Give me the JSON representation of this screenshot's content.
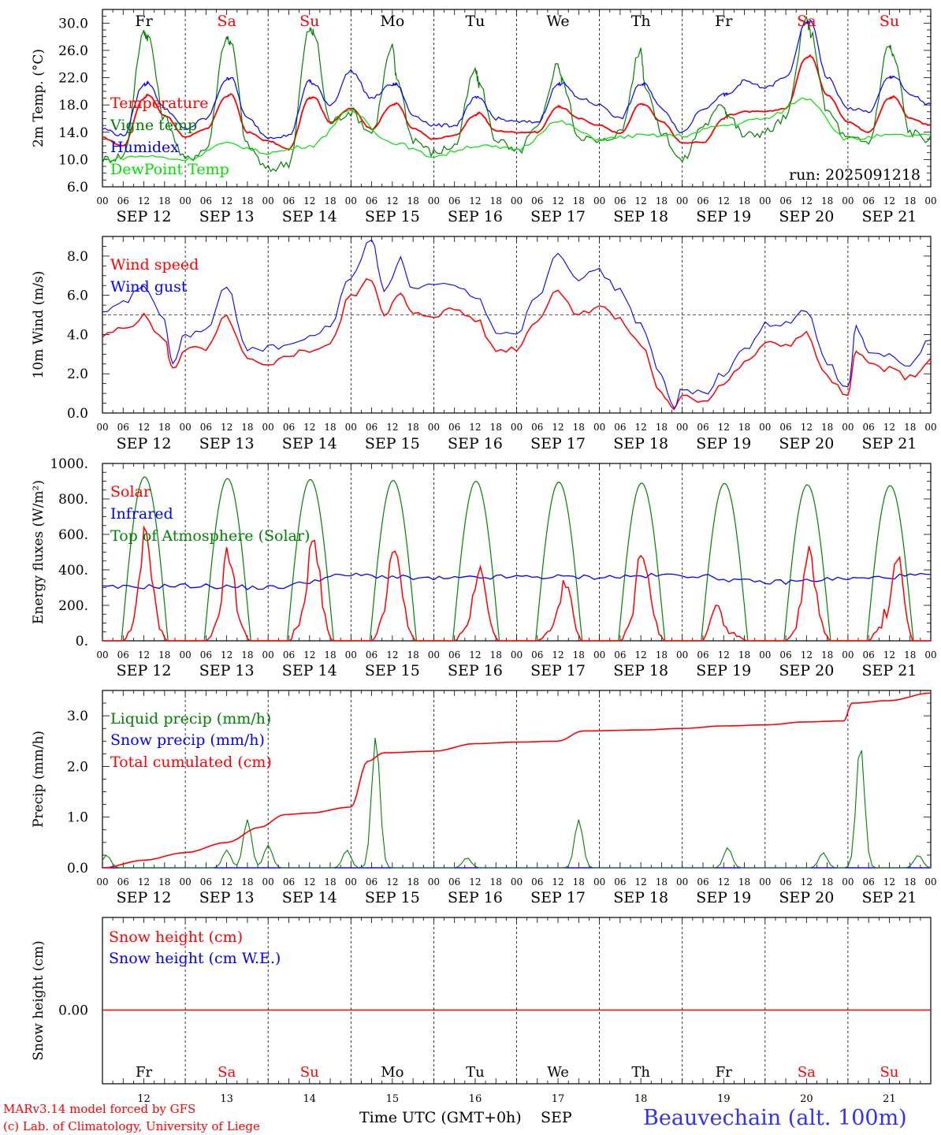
{
  "colors": {
    "red": "#ff0000",
    "green": "#008000",
    "blue": "#0000ff",
    "lightgreen": "#00e000",
    "gray": "#555555"
  },
  "footer": {
    "model": "MARv3.14 model forced by GFS",
    "lab": "(c) Lab. of Climatology, University of Liege",
    "time_axis": "Time UTC (GMT+0h)",
    "month": "SEP",
    "station": "Beauvechain (alt. 100m)"
  },
  "run_label": "run: 2025091218",
  "date_labels": [
    "SEP 12",
    "SEP 13",
    "SEP 14",
    "SEP 15",
    "SEP 16",
    "SEP 17",
    "SEP 18",
    "SEP 19",
    "SEP 20",
    "SEP 21"
  ],
  "day_numbers": [
    "12",
    "13",
    "14",
    "15",
    "16",
    "17",
    "18",
    "19",
    "20",
    "21"
  ],
  "weekdays": [
    "Fr",
    "Sa",
    "Su",
    "Mo",
    "Tu",
    "We",
    "Th",
    "Fr",
    "Sa",
    "Su"
  ],
  "weekend": [
    false,
    true,
    true,
    false,
    false,
    false,
    false,
    false,
    true,
    true
  ],
  "hour_ticks": [
    "00",
    "06",
    "12",
    "18"
  ],
  "chart_data": [
    {
      "type": "line",
      "ylabel": "2m Temp. (°C)",
      "ylim": [
        6,
        32
      ],
      "yticks": [
        "6.0",
        "10.0",
        "14.0",
        "18.0",
        "22.0",
        "26.0",
        "30.0"
      ],
      "x_unit": "day offset from SEP 12 00 UTC",
      "series": [
        {
          "name": "Temperature",
          "color": "red",
          "x": [
            0,
            0.25,
            0.5,
            0.55,
            0.75,
            1,
            1.25,
            1.5,
            1.55,
            1.75,
            2,
            2.25,
            2.5,
            2.55,
            2.75,
            3,
            3.25,
            3.5,
            3.55,
            3.75,
            4,
            4.25,
            4.5,
            4.55,
            4.75,
            5,
            5.25,
            5.5,
            5.55,
            5.75,
            6,
            6.25,
            6.5,
            6.55,
            6.75,
            7,
            7.25,
            7.5,
            7.55,
            7.75,
            8,
            8.25,
            8.5,
            8.55,
            8.75,
            9,
            9.25,
            9.5,
            9.55,
            9.75,
            10
          ],
          "y": [
            13.2,
            12.0,
            19.0,
            19.5,
            16.5,
            13.3,
            14.5,
            19.2,
            19.6,
            14.0,
            12.7,
            11.5,
            19.0,
            19.2,
            15.5,
            17.5,
            14.5,
            18.0,
            18.2,
            14.5,
            13.0,
            13.5,
            16.5,
            16.8,
            14.2,
            14.0,
            14.0,
            17.8,
            17.6,
            16.0,
            15.0,
            13.8,
            18.2,
            18.0,
            15.5,
            12.5,
            12.5,
            16.0,
            16.5,
            17.0,
            17.0,
            17.5,
            25.0,
            25.2,
            19.5,
            15.5,
            14.0,
            19.0,
            19.2,
            16.0,
            15.0
          ]
        },
        {
          "name": "Vigne temp",
          "color": "green",
          "x": [
            0,
            0.25,
            0.5,
            0.55,
            0.75,
            1,
            1.25,
            1.5,
            1.55,
            1.75,
            2,
            2.25,
            2.5,
            2.55,
            2.75,
            3,
            3.25,
            3.5,
            3.55,
            3.75,
            4,
            4.25,
            4.5,
            4.55,
            4.75,
            5,
            5.25,
            5.5,
            5.55,
            5.75,
            6,
            6.25,
            6.5,
            6.55,
            6.75,
            7,
            7.25,
            7.5,
            7.55,
            7.75,
            8,
            8.25,
            8.5,
            8.55,
            8.75,
            9,
            9.25,
            9.5,
            9.55,
            9.75,
            10
          ],
          "y": [
            10.0,
            10.5,
            28.5,
            28.0,
            16.0,
            10.0,
            11.5,
            28.0,
            27.0,
            12.0,
            8.5,
            9.5,
            29.0,
            28.5,
            15.5,
            17.0,
            14.0,
            26.5,
            22.0,
            13.0,
            11.0,
            12.0,
            23.0,
            21.0,
            13.0,
            11.0,
            14.5,
            24.0,
            21.5,
            13.5,
            12.5,
            14.0,
            26.0,
            21.0,
            14.0,
            9.8,
            15.0,
            18.0,
            16.5,
            13.5,
            14.0,
            16.0,
            30.5,
            28.5,
            17.0,
            13.0,
            12.5,
            26.8,
            25.0,
            14.0,
            13.0
          ]
        },
        {
          "name": "Humidex",
          "color": "blue",
          "x": [
            0,
            0.25,
            0.5,
            0.55,
            0.75,
            1,
            1.25,
            1.5,
            1.55,
            1.75,
            2,
            2.25,
            2.5,
            2.55,
            2.75,
            3,
            3.25,
            3.5,
            3.55,
            3.75,
            4,
            4.25,
            4.5,
            4.55,
            4.75,
            5,
            5.25,
            5.5,
            5.55,
            5.75,
            6,
            6.25,
            6.5,
            6.55,
            6.75,
            7,
            7.25,
            7.5,
            7.55,
            7.75,
            8,
            8.25,
            8.5,
            8.55,
            8.75,
            9,
            9.25,
            9.5,
            9.55,
            9.75,
            10
          ],
          "y": [
            14.5,
            13.5,
            21.0,
            21.2,
            17.5,
            14.5,
            16.0,
            21.8,
            22.0,
            16.0,
            13.3,
            13.5,
            21.5,
            21.0,
            18.0,
            23.0,
            19.0,
            21.0,
            21.0,
            16.5,
            15.0,
            15.0,
            19.0,
            19.0,
            16.0,
            15.5,
            15.5,
            21.0,
            21.2,
            19.0,
            18.0,
            16.0,
            21.0,
            21.0,
            17.5,
            14.0,
            17.5,
            19.5,
            19.5,
            21.5,
            20.5,
            22.0,
            30.0,
            30.2,
            22.0,
            17.5,
            17.0,
            22.0,
            22.2,
            19.5,
            18.0
          ]
        },
        {
          "name": "DewPoint Temp",
          "color": "lightgreen",
          "x": [
            0,
            0.5,
            1,
            1.5,
            2,
            2.5,
            3,
            3.5,
            4,
            4.5,
            5,
            5.5,
            6,
            6.5,
            7,
            7.5,
            8,
            8.5,
            9,
            9.5,
            10
          ],
          "y": [
            10.0,
            10.5,
            10.0,
            12.3,
            11.0,
            12.0,
            17.0,
            12.5,
            10.5,
            12.0,
            11.5,
            15.5,
            13.0,
            13.5,
            13.5,
            15.0,
            16.0,
            19.0,
            13.0,
            13.5,
            13.5
          ]
        }
      ]
    },
    {
      "type": "line",
      "ylabel": "10m Wind (m/s)",
      "ylim": [
        0,
        9
      ],
      "yticks": [
        "0.0",
        "2.0",
        "4.0",
        "6.0",
        "8.0"
      ],
      "reference_line": 5,
      "x_unit": "day offset from SEP 12 00 UTC",
      "series": [
        {
          "name": "Wind speed",
          "color": "red",
          "x": [
            0,
            0.25,
            0.5,
            0.75,
            0.85,
            1,
            1.25,
            1.5,
            1.75,
            2,
            2.25,
            2.5,
            2.75,
            3,
            3.25,
            3.4,
            3.6,
            3.75,
            4,
            4.25,
            4.5,
            4.75,
            5,
            5.25,
            5.5,
            5.75,
            6,
            6.25,
            6.5,
            6.75,
            6.9,
            7,
            7.25,
            7.5,
            7.75,
            8,
            8.25,
            8.5,
            8.75,
            9,
            9.1,
            9.25,
            9.5,
            9.75,
            10
          ],
          "y": [
            3.9,
            4.3,
            4.9,
            3.7,
            2.2,
            3.3,
            3.2,
            4.9,
            2.7,
            2.3,
            3.0,
            3.2,
            3.5,
            6.0,
            6.8,
            5.1,
            6.0,
            5.0,
            5.0,
            5.3,
            4.8,
            3.2,
            3.3,
            4.8,
            6.3,
            5.0,
            5.5,
            4.7,
            3.5,
            1.0,
            0.1,
            1.0,
            0.6,
            1.5,
            2.5,
            3.5,
            3.5,
            4.0,
            1.8,
            0.8,
            3.3,
            2.5,
            2.2,
            1.8,
            2.7
          ]
        },
        {
          "name": "Wind gust",
          "color": "blue",
          "x": [
            0,
            0.25,
            0.5,
            0.75,
            0.85,
            1,
            1.25,
            1.5,
            1.75,
            2,
            2.25,
            2.5,
            2.75,
            3,
            3.25,
            3.4,
            3.6,
            3.75,
            4,
            4.25,
            4.5,
            4.75,
            5,
            5.25,
            5.5,
            5.75,
            6,
            6.25,
            6.5,
            6.75,
            6.9,
            7,
            7.25,
            7.5,
            7.75,
            8,
            8.25,
            8.5,
            8.75,
            9,
            9.1,
            9.25,
            9.5,
            9.75,
            10
          ],
          "y": [
            5.0,
            5.6,
            6.5,
            4.6,
            2.5,
            4.0,
            4.2,
            6.4,
            3.3,
            3.3,
            3.5,
            3.8,
            4.5,
            7.0,
            8.8,
            6.3,
            7.8,
            6.3,
            6.5,
            6.4,
            6.0,
            4.2,
            4.1,
            6.0,
            8.2,
            6.9,
            7.2,
            6.2,
            4.5,
            1.8,
            0.2,
            1.3,
            1.0,
            2.0,
            3.2,
            4.5,
            4.5,
            5.2,
            2.5,
            1.2,
            4.4,
            3.0,
            3.0,
            2.5,
            3.7
          ]
        }
      ]
    },
    {
      "type": "line",
      "ylabel": "Energy fluxes (W/m²)",
      "ylim": [
        0,
        1000
      ],
      "yticks": [
        "0.",
        "200.",
        "400.",
        "600.",
        "800.",
        "1000."
      ],
      "x_unit": "day offset from SEP 12 00 UTC",
      "series": [
        {
          "name": "Solar",
          "color": "red",
          "peaks": [
            [
              0,
              0.52,
              680
            ],
            [
              1,
              0.52,
              550
            ],
            [
              2,
              0.55,
              670
            ],
            [
              3,
              0.52,
              640
            ],
            [
              4,
              0.55,
              450
            ],
            [
              5,
              0.6,
              390
            ],
            [
              6,
              0.52,
              590
            ],
            [
              7,
              0.4,
              240
            ],
            [
              8,
              0.53,
              600
            ],
            [
              9,
              0.6,
              580
            ]
          ]
        },
        {
          "name": "Infrared",
          "color": "blue",
          "x": [
            0,
            1,
            2,
            3,
            4,
            5,
            6,
            7,
            8,
            9,
            10
          ],
          "y": [
            300,
            310,
            300,
            370,
            350,
            360,
            360,
            370,
            330,
            350,
            370
          ]
        },
        {
          "name": "Top of Atmosphere (Solar)",
          "color": "green",
          "peak_values": [
            925,
            915,
            910,
            905,
            900,
            895,
            890,
            888,
            880,
            875
          ]
        }
      ]
    },
    {
      "type": "line",
      "ylabel": "Precip (mm/h)",
      "ylim": [
        0,
        3.5
      ],
      "yticks": [
        "0.0",
        "1.0",
        "2.0",
        "3.0"
      ],
      "x_unit": "day offset from SEP 12 00 UTC",
      "series": [
        {
          "name": "Liquid precip (mm/h)",
          "color": "green",
          "spikes": [
            [
              0.05,
              0.25
            ],
            [
              1.5,
              0.35
            ],
            [
              1.75,
              0.95
            ],
            [
              2.0,
              0.45
            ],
            [
              2.95,
              0.35
            ],
            [
              3.3,
              2.6
            ],
            [
              4.4,
              0.2
            ],
            [
              5.75,
              0.95
            ],
            [
              7.55,
              0.4
            ],
            [
              8.7,
              0.3
            ],
            [
              9.15,
              2.45
            ],
            [
              9.85,
              0.25
            ]
          ]
        },
        {
          "name": "Snow precip (mm/h)",
          "color": "blue",
          "x": [
            0,
            10
          ],
          "y": [
            0,
            0
          ]
        },
        {
          "name": "Total cumulated (cm)",
          "color": "red",
          "x": [
            0,
            0.5,
            1,
            1.5,
            1.9,
            2.2,
            2.5,
            3,
            3.2,
            3.4,
            4,
            4.5,
            5,
            5.5,
            5.8,
            6.5,
            7,
            7.5,
            8,
            8.5,
            8.95,
            9.05,
            9.5,
            10
          ],
          "y": [
            0.0,
            0.15,
            0.3,
            0.5,
            0.8,
            1.05,
            1.08,
            1.2,
            2.1,
            2.27,
            2.3,
            2.45,
            2.48,
            2.5,
            2.7,
            2.72,
            2.75,
            2.8,
            2.82,
            2.88,
            2.9,
            3.25,
            3.3,
            3.45
          ]
        }
      ]
    },
    {
      "type": "line",
      "ylabel": "Snow height (cm)",
      "yticks": [
        "0.00"
      ],
      "x_unit": "day offset from SEP 12 00 UTC",
      "series": [
        {
          "name": "Snow height (cm)",
          "color": "red",
          "x": [
            0,
            10
          ],
          "y": [
            0,
            0
          ]
        },
        {
          "name": "Snow height (cm W.E.)",
          "color": "blue",
          "x": [
            0,
            10
          ],
          "y": [
            0,
            0
          ]
        }
      ]
    }
  ]
}
